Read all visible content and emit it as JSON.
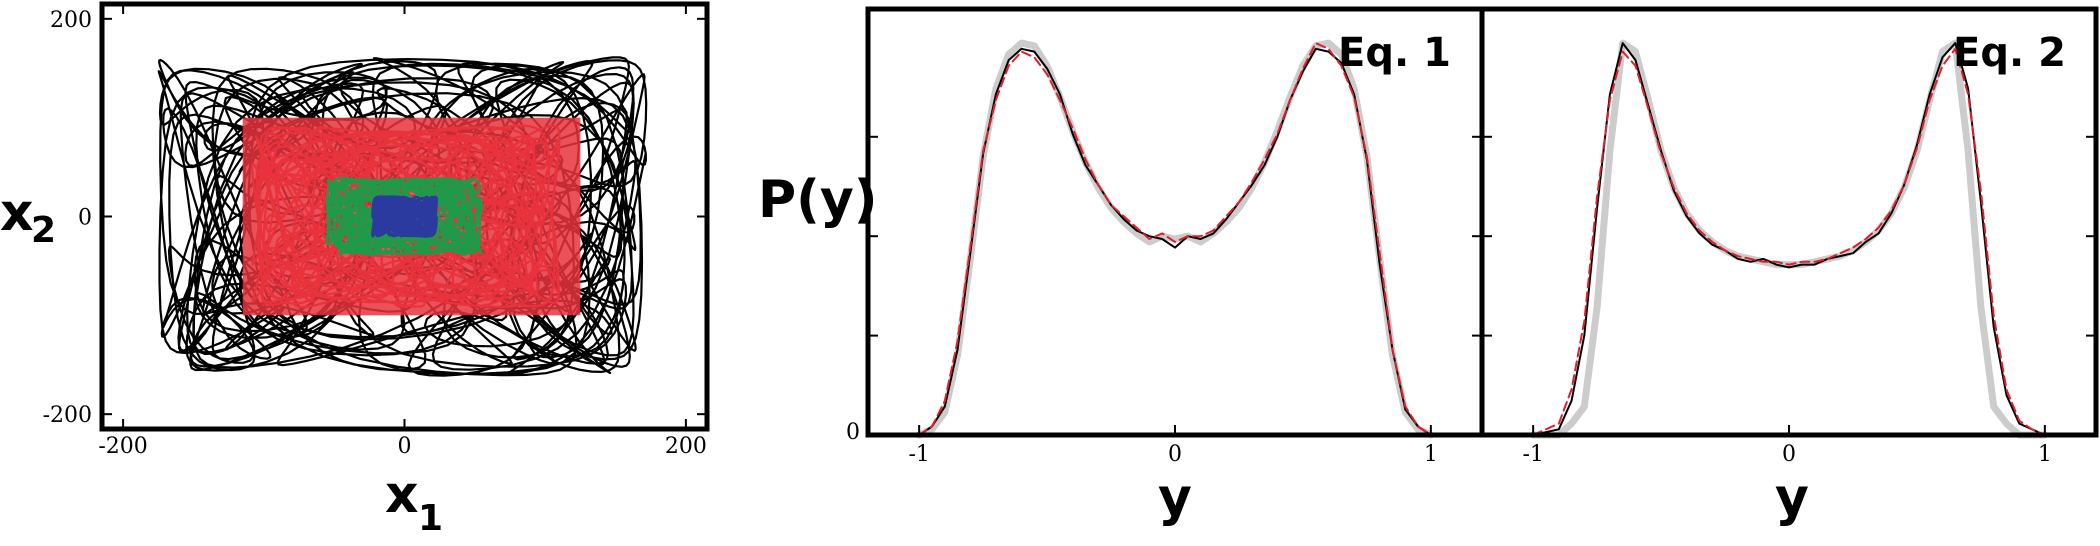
{
  "chart_data": [
    {
      "type": "line",
      "title": "",
      "xlabel": "x",
      "xlabel_sub": "1",
      "ylabel": "x",
      "ylabel_sub": "2",
      "xlim": [
        -215,
        215
      ],
      "ylim": [
        -215,
        215
      ],
      "xticks": [
        -200,
        0,
        200
      ],
      "yticks": [
        -200,
        0,
        200
      ],
      "series": [
        {
          "color": "#000000",
          "amplitude": [
            190,
            175
          ],
          "values_range": {
            "x": [
              -200,
              200
            ],
            "y": [
              -195,
              195
            ]
          }
        },
        {
          "color": "#e8323c",
          "amplitude": [
            120,
            100
          ],
          "values_range": {
            "x": [
              -120,
              140
            ],
            "y": [
              -105,
              110
            ]
          }
        },
        {
          "color": "#1f9a48",
          "amplitude": [
            60,
            42
          ],
          "values_range": {
            "x": [
              -60,
              60
            ],
            "y": [
              -45,
              40
            ]
          }
        },
        {
          "color": "#2b3a9e",
          "amplitude": [
            25,
            22
          ],
          "values_range": {
            "x": [
              -25,
              25
            ],
            "y": [
              -22,
              22
            ]
          }
        }
      ]
    },
    {
      "type": "line",
      "annotation": "Eq. 1",
      "xlabel": "y",
      "ylabel": "P(y)",
      "xlim": [
        -1.2,
        1.2
      ],
      "ylim": [
        0,
        1.5
      ],
      "xticks": [
        -1,
        0,
        1
      ],
      "yticks": [
        0
      ],
      "series": [
        {
          "style": "gray-thick",
          "color": "#cccccc",
          "x": [
            -1.0,
            -0.95,
            -0.9,
            -0.85,
            -0.8,
            -0.75,
            -0.7,
            -0.65,
            -0.6,
            -0.55,
            -0.5,
            -0.45,
            -0.4,
            -0.35,
            -0.3,
            -0.25,
            -0.2,
            -0.15,
            -0.1,
            -0.05,
            0,
            0.05,
            0.1,
            0.15,
            0.2,
            0.25,
            0.3,
            0.35,
            0.4,
            0.45,
            0.5,
            0.55,
            0.6,
            0.65,
            0.7,
            0.75,
            0.8,
            0.85,
            0.9,
            0.95,
            1.0
          ],
          "y": [
            0,
            0.02,
            0.08,
            0.28,
            0.62,
            0.98,
            1.22,
            1.34,
            1.38,
            1.37,
            1.3,
            1.19,
            1.07,
            0.96,
            0.87,
            0.8,
            0.75,
            0.71,
            0.68,
            0.7,
            0.69,
            0.7,
            0.68,
            0.71,
            0.75,
            0.8,
            0.87,
            0.96,
            1.07,
            1.19,
            1.3,
            1.37,
            1.38,
            1.34,
            1.22,
            0.98,
            0.62,
            0.28,
            0.08,
            0.02,
            0
          ]
        },
        {
          "style": "black-solid",
          "color": "#000000",
          "x": [
            -1.0,
            -0.95,
            -0.9,
            -0.85,
            -0.8,
            -0.75,
            -0.7,
            -0.65,
            -0.6,
            -0.55,
            -0.5,
            -0.45,
            -0.4,
            -0.35,
            -0.3,
            -0.25,
            -0.2,
            -0.15,
            -0.1,
            -0.05,
            0,
            0.05,
            0.1,
            0.15,
            0.2,
            0.25,
            0.3,
            0.35,
            0.4,
            0.45,
            0.5,
            0.55,
            0.6,
            0.65,
            0.7,
            0.75,
            0.8,
            0.85,
            0.9,
            0.95,
            1.0
          ],
          "y": [
            0,
            0.03,
            0.1,
            0.3,
            0.64,
            0.99,
            1.2,
            1.32,
            1.36,
            1.35,
            1.29,
            1.2,
            1.06,
            0.95,
            0.88,
            0.81,
            0.76,
            0.72,
            0.7,
            0.69,
            0.66,
            0.7,
            0.69,
            0.71,
            0.76,
            0.82,
            0.88,
            0.95,
            1.05,
            1.18,
            1.28,
            1.36,
            1.35,
            1.31,
            1.2,
            0.97,
            0.6,
            0.3,
            0.09,
            0.03,
            0
          ]
        },
        {
          "style": "red-dashed",
          "color": "#e01f2a",
          "x": [
            -1.0,
            -0.95,
            -0.9,
            -0.85,
            -0.8,
            -0.75,
            -0.7,
            -0.65,
            -0.6,
            -0.55,
            -0.5,
            -0.45,
            -0.4,
            -0.35,
            -0.3,
            -0.25,
            -0.2,
            -0.15,
            -0.1,
            -0.05,
            0,
            0.05,
            0.1,
            0.15,
            0.2,
            0.25,
            0.3,
            0.35,
            0.4,
            0.45,
            0.5,
            0.55,
            0.6,
            0.65,
            0.7,
            0.75,
            0.8,
            0.85,
            0.9,
            0.95,
            1.0
          ],
          "y": [
            0,
            0.03,
            0.12,
            0.33,
            0.66,
            1.0,
            1.18,
            1.3,
            1.35,
            1.33,
            1.27,
            1.18,
            1.08,
            0.97,
            0.88,
            0.81,
            0.77,
            0.73,
            0.69,
            0.71,
            0.68,
            0.7,
            0.7,
            0.72,
            0.77,
            0.82,
            0.89,
            0.97,
            1.06,
            1.18,
            1.29,
            1.38,
            1.36,
            1.3,
            1.19,
            0.98,
            0.64,
            0.3,
            0.1,
            0.03,
            0
          ]
        }
      ]
    },
    {
      "type": "line",
      "annotation": "Eq. 2",
      "xlabel": "y",
      "xlim": [
        -1.2,
        1.2
      ],
      "ylim": [
        0,
        1.5
      ],
      "xticks": [
        -1,
        0,
        1
      ],
      "series": [
        {
          "style": "gray-thick",
          "color": "#cccccc",
          "x": [
            -1.0,
            -0.9,
            -0.85,
            -0.8,
            -0.75,
            -0.7,
            -0.65,
            -0.6,
            -0.55,
            -0.5,
            -0.45,
            -0.4,
            -0.35,
            -0.3,
            -0.25,
            -0.2,
            -0.15,
            -0.1,
            -0.05,
            0,
            0.05,
            0.1,
            0.15,
            0.2,
            0.25,
            0.3,
            0.35,
            0.4,
            0.45,
            0.5,
            0.55,
            0.6,
            0.65,
            0.7,
            0.75,
            0.8,
            0.85,
            0.9,
            1.0
          ],
          "y": [
            0,
            0,
            0.04,
            0.1,
            0.45,
            1.0,
            1.38,
            1.35,
            1.18,
            1.0,
            0.87,
            0.78,
            0.72,
            0.68,
            0.65,
            0.63,
            0.62,
            0.61,
            0.6,
            0.6,
            0.6,
            0.61,
            0.62,
            0.63,
            0.65,
            0.68,
            0.72,
            0.78,
            0.87,
            1.0,
            1.18,
            1.35,
            1.38,
            1.0,
            0.45,
            0.1,
            0.04,
            0,
            0
          ]
        },
        {
          "style": "black-solid",
          "color": "#000000",
          "x": [
            -1.0,
            -0.9,
            -0.85,
            -0.8,
            -0.75,
            -0.7,
            -0.65,
            -0.6,
            -0.55,
            -0.5,
            -0.45,
            -0.4,
            -0.35,
            -0.3,
            -0.25,
            -0.2,
            -0.15,
            -0.1,
            -0.05,
            0,
            0.05,
            0.1,
            0.15,
            0.2,
            0.25,
            0.3,
            0.35,
            0.4,
            0.45,
            0.5,
            0.55,
            0.6,
            0.65,
            0.7,
            0.75,
            0.8,
            0.85,
            0.9,
            0.95,
            1.0
          ],
          "y": [
            0,
            0.02,
            0.12,
            0.35,
            0.8,
            1.2,
            1.38,
            1.32,
            1.16,
            1.0,
            0.86,
            0.77,
            0.71,
            0.67,
            0.65,
            0.62,
            0.61,
            0.62,
            0.6,
            0.59,
            0.6,
            0.6,
            0.62,
            0.63,
            0.64,
            0.68,
            0.71,
            0.78,
            0.88,
            1.02,
            1.2,
            1.33,
            1.38,
            1.22,
            0.82,
            0.38,
            0.14,
            0.04,
            0.02,
            0
          ]
        },
        {
          "style": "red-dashed",
          "color": "#e01f2a",
          "x": [
            -1.0,
            -0.9,
            -0.85,
            -0.8,
            -0.75,
            -0.7,
            -0.65,
            -0.6,
            -0.55,
            -0.5,
            -0.45,
            -0.4,
            -0.35,
            -0.3,
            -0.25,
            -0.2,
            -0.15,
            -0.1,
            -0.05,
            0,
            0.05,
            0.1,
            0.15,
            0.2,
            0.25,
            0.3,
            0.35,
            0.4,
            0.45,
            0.5,
            0.55,
            0.6,
            0.65,
            0.7,
            0.75,
            0.8,
            0.85,
            0.9,
            0.95,
            1.0
          ],
          "y": [
            0,
            0.04,
            0.16,
            0.4,
            0.84,
            1.18,
            1.35,
            1.3,
            1.15,
            0.99,
            0.87,
            0.78,
            0.72,
            0.68,
            0.65,
            0.63,
            0.62,
            0.61,
            0.61,
            0.6,
            0.61,
            0.61,
            0.62,
            0.64,
            0.66,
            0.69,
            0.73,
            0.79,
            0.88,
            1.01,
            1.18,
            1.3,
            1.36,
            1.2,
            0.86,
            0.42,
            0.16,
            0.05,
            0.02,
            0
          ]
        }
      ]
    }
  ]
}
